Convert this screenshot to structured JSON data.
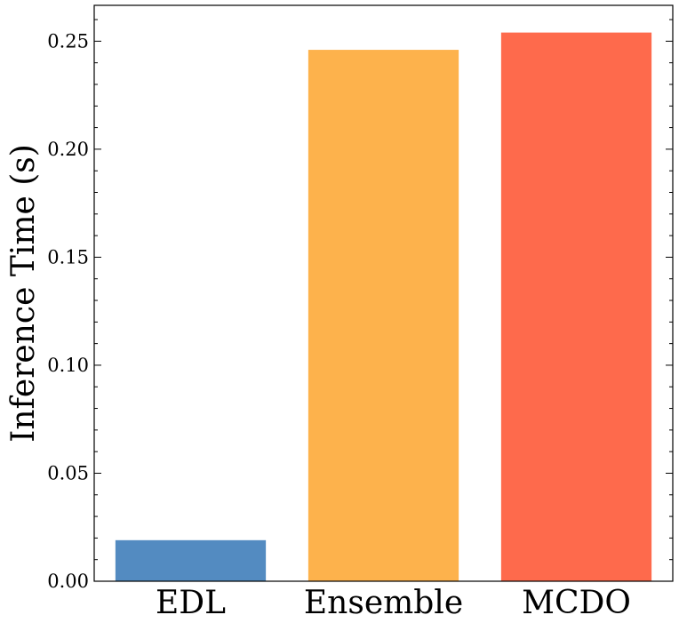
{
  "chart_data": {
    "type": "bar",
    "title": "",
    "xlabel": "",
    "ylabel": "Inference Time (s)",
    "categories": [
      "EDL",
      "Ensemble",
      "MCDO"
    ],
    "values": [
      0.019,
      0.246,
      0.254
    ],
    "colors": [
      "#538BC1",
      "#FDB24C",
      "#FE6A4C"
    ],
    "ylim": [
      0,
      0.2666
    ],
    "yticks": [
      0,
      0.05,
      0.1,
      0.15,
      0.2,
      0.25
    ],
    "ytick_labels": [
      "0.00",
      "0.05",
      "0.10",
      "0.15",
      "0.20",
      "0.25"
    ],
    "yminor_step": 0.01,
    "grid": false
  }
}
